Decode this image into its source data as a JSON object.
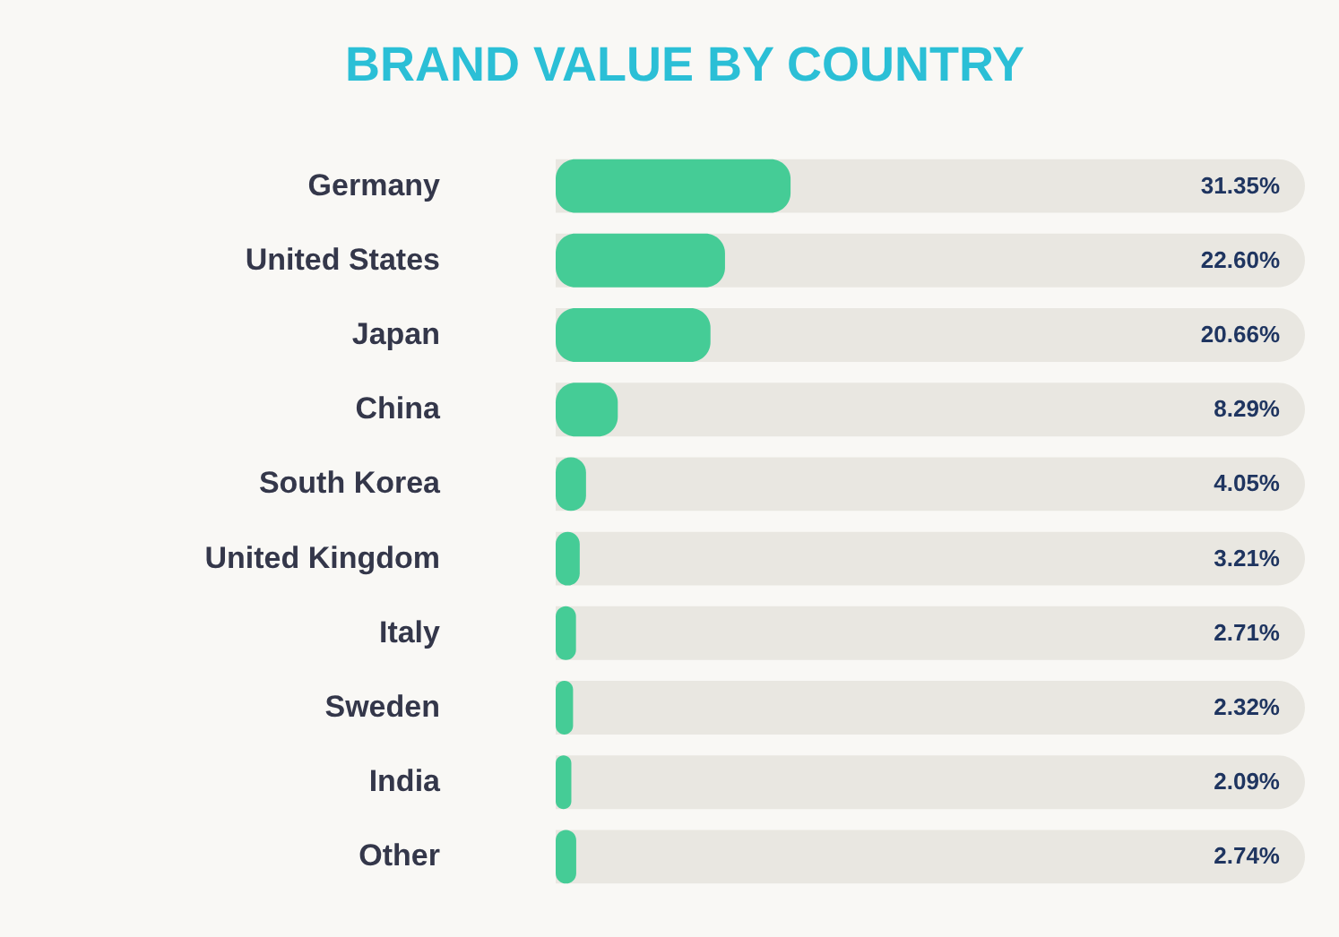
{
  "chart_data": {
    "type": "bar",
    "orientation": "horizontal",
    "title": "BRAND VALUE BY COUNTRY",
    "categories": [
      "Germany",
      "United States",
      "Japan",
      "China",
      "South Korea",
      "United Kingdom",
      "Italy",
      "Sweden",
      "India",
      "Other"
    ],
    "values": [
      31.35,
      22.6,
      20.66,
      8.29,
      4.05,
      3.21,
      2.71,
      2.32,
      2.09,
      2.74
    ],
    "value_labels": [
      "31.35%",
      "22.60%",
      "20.66%",
      "8.29%",
      "4.05%",
      "3.21%",
      "2.71%",
      "2.32%",
      "2.09%",
      "2.74%"
    ],
    "color": "#45cc96",
    "xlim": [
      0,
      100
    ],
    "tick_labels": "y"
  }
}
